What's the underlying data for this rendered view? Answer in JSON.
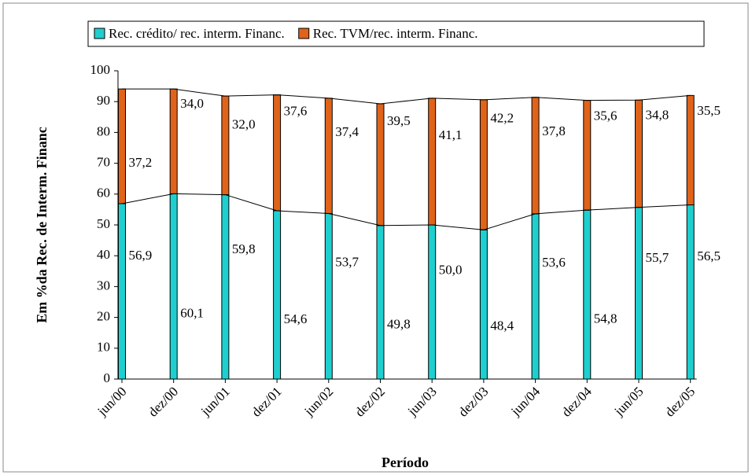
{
  "chart_data": {
    "type": "stacked-bar",
    "y_label": "Em %da Rec. de Interm. Financ",
    "x_label": "Período",
    "categories": [
      "jun/00",
      "dez/00",
      "jun/01",
      "dez/01",
      "jun/02",
      "dez/02",
      "jun/03",
      "dez/03",
      "jun/04",
      "dez/04",
      "jun/05",
      "dez/05"
    ],
    "series": [
      {
        "name": "Rec. crédito/ rec. interm. Financ.",
        "color": "#1fcfcf",
        "values": [
          56.9,
          60.1,
          59.8,
          54.6,
          53.7,
          49.8,
          50.0,
          48.4,
          53.6,
          54.8,
          55.7,
          56.5
        ],
        "value_labels": [
          "56,9",
          "60,1",
          "59,8",
          "54,6",
          "53,7",
          "49,8",
          "50,0",
          "48,4",
          "53,6",
          "54,8",
          "55,7",
          "56,5"
        ]
      },
      {
        "name": "Rec. TVM/rec. interm. Financ.",
        "color": "#e0631a",
        "values": [
          37.2,
          34.0,
          32.0,
          37.6,
          37.4,
          39.5,
          41.1,
          42.2,
          37.8,
          35.6,
          34.8,
          35.5
        ],
        "value_labels": [
          "37,2",
          "34,0",
          "32,0",
          "37,6",
          "37,4",
          "39,5",
          "41,1",
          "42,2",
          "37,8",
          "35,6",
          "34,8",
          "35,5"
        ]
      }
    ],
    "ylim": [
      0,
      100
    ],
    "yticks": [
      0,
      10,
      20,
      30,
      40,
      50,
      60,
      70,
      80,
      90,
      100
    ],
    "legend": "top"
  }
}
